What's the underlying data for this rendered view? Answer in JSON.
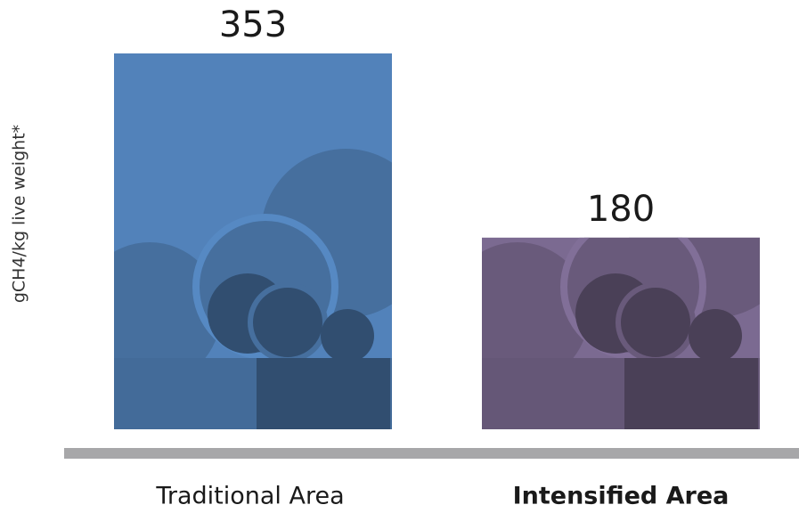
{
  "chart_data": {
    "type": "bar",
    "y_label": "gCH4/kg live weight*",
    "categories": [
      "Traditional Area",
      "Intensified Area"
    ],
    "values": [
      353,
      180
    ],
    "colors": [
      "#5282ba",
      "#7b6a91"
    ],
    "grid": false
  }
}
